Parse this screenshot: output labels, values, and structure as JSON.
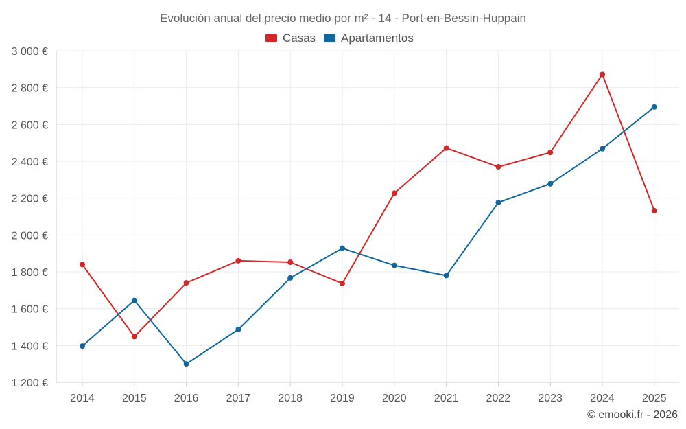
{
  "chart_data": {
    "type": "line",
    "title": "Evolución anual del precio medio por m² - 14 - Port-en-Bessin-Huppain",
    "xlabel": "",
    "ylabel": "",
    "categories": [
      "2014",
      "2015",
      "2016",
      "2017",
      "2018",
      "2019",
      "2020",
      "2021",
      "2022",
      "2023",
      "2024",
      "2025"
    ],
    "ylim": [
      1200,
      3000
    ],
    "yticks": [
      1200,
      1400,
      1600,
      1800,
      2000,
      2200,
      2400,
      2600,
      2800,
      3000
    ],
    "ytick_labels": [
      "1 200 €",
      "1 400 €",
      "1 600 €",
      "1 800 €",
      "2 000 €",
      "2 200 €",
      "2 400 €",
      "2 600 €",
      "2 800 €",
      "3 000 €"
    ],
    "grid": true,
    "legend_position": "top-center",
    "series": [
      {
        "name": "Casas",
        "color": "#d62728",
        "values": [
          1840,
          1448,
          1740,
          1860,
          1852,
          1737,
          2227,
          2472,
          2370,
          2448,
          2872,
          2132
        ]
      },
      {
        "name": "Apartamentos",
        "color": "#0f679b",
        "values": [
          1397,
          1645,
          1300,
          1487,
          1767,
          1928,
          1835,
          1780,
          2176,
          2278,
          2468,
          2695
        ]
      }
    ],
    "credit": "© emooki.fr - 2026"
  }
}
